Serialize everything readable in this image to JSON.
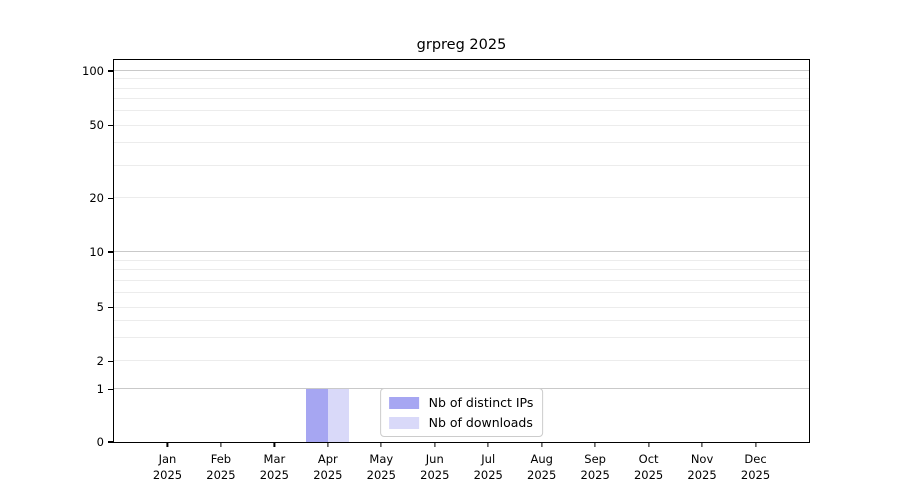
{
  "title": "grpreg 2025",
  "chart_data": {
    "type": "bar",
    "title": "grpreg 2025",
    "categories": [
      "Jan",
      "Feb",
      "Mar",
      "Apr",
      "May",
      "Jun",
      "Jul",
      "Aug",
      "Sep",
      "Oct",
      "Nov",
      "Dec"
    ],
    "x_year": "2025",
    "series": [
      {
        "name": "Nb of distinct IPs",
        "color": "#a6a6f2",
        "values": [
          0,
          0,
          0,
          1,
          0,
          0,
          0,
          0,
          0,
          0,
          0,
          0
        ]
      },
      {
        "name": "Nb of downloads",
        "color": "#d9d9f9",
        "values": [
          0,
          0,
          0,
          1,
          0,
          0,
          0,
          0,
          0,
          0,
          0,
          0
        ]
      }
    ],
    "y_ticks": [
      0,
      1,
      2,
      5,
      10,
      20,
      50,
      100
    ],
    "y_major_gridlines": [
      1,
      10,
      100
    ],
    "y_minor_gridlines": [
      2,
      3,
      4,
      5,
      6,
      7,
      8,
      9,
      20,
      30,
      40,
      50,
      60,
      70,
      80,
      90
    ],
    "y_scale": "log-like",
    "ylim": [
      0,
      115
    ],
    "xlabel": "",
    "ylabel": "",
    "grid": true,
    "legend_position": "lower center"
  }
}
